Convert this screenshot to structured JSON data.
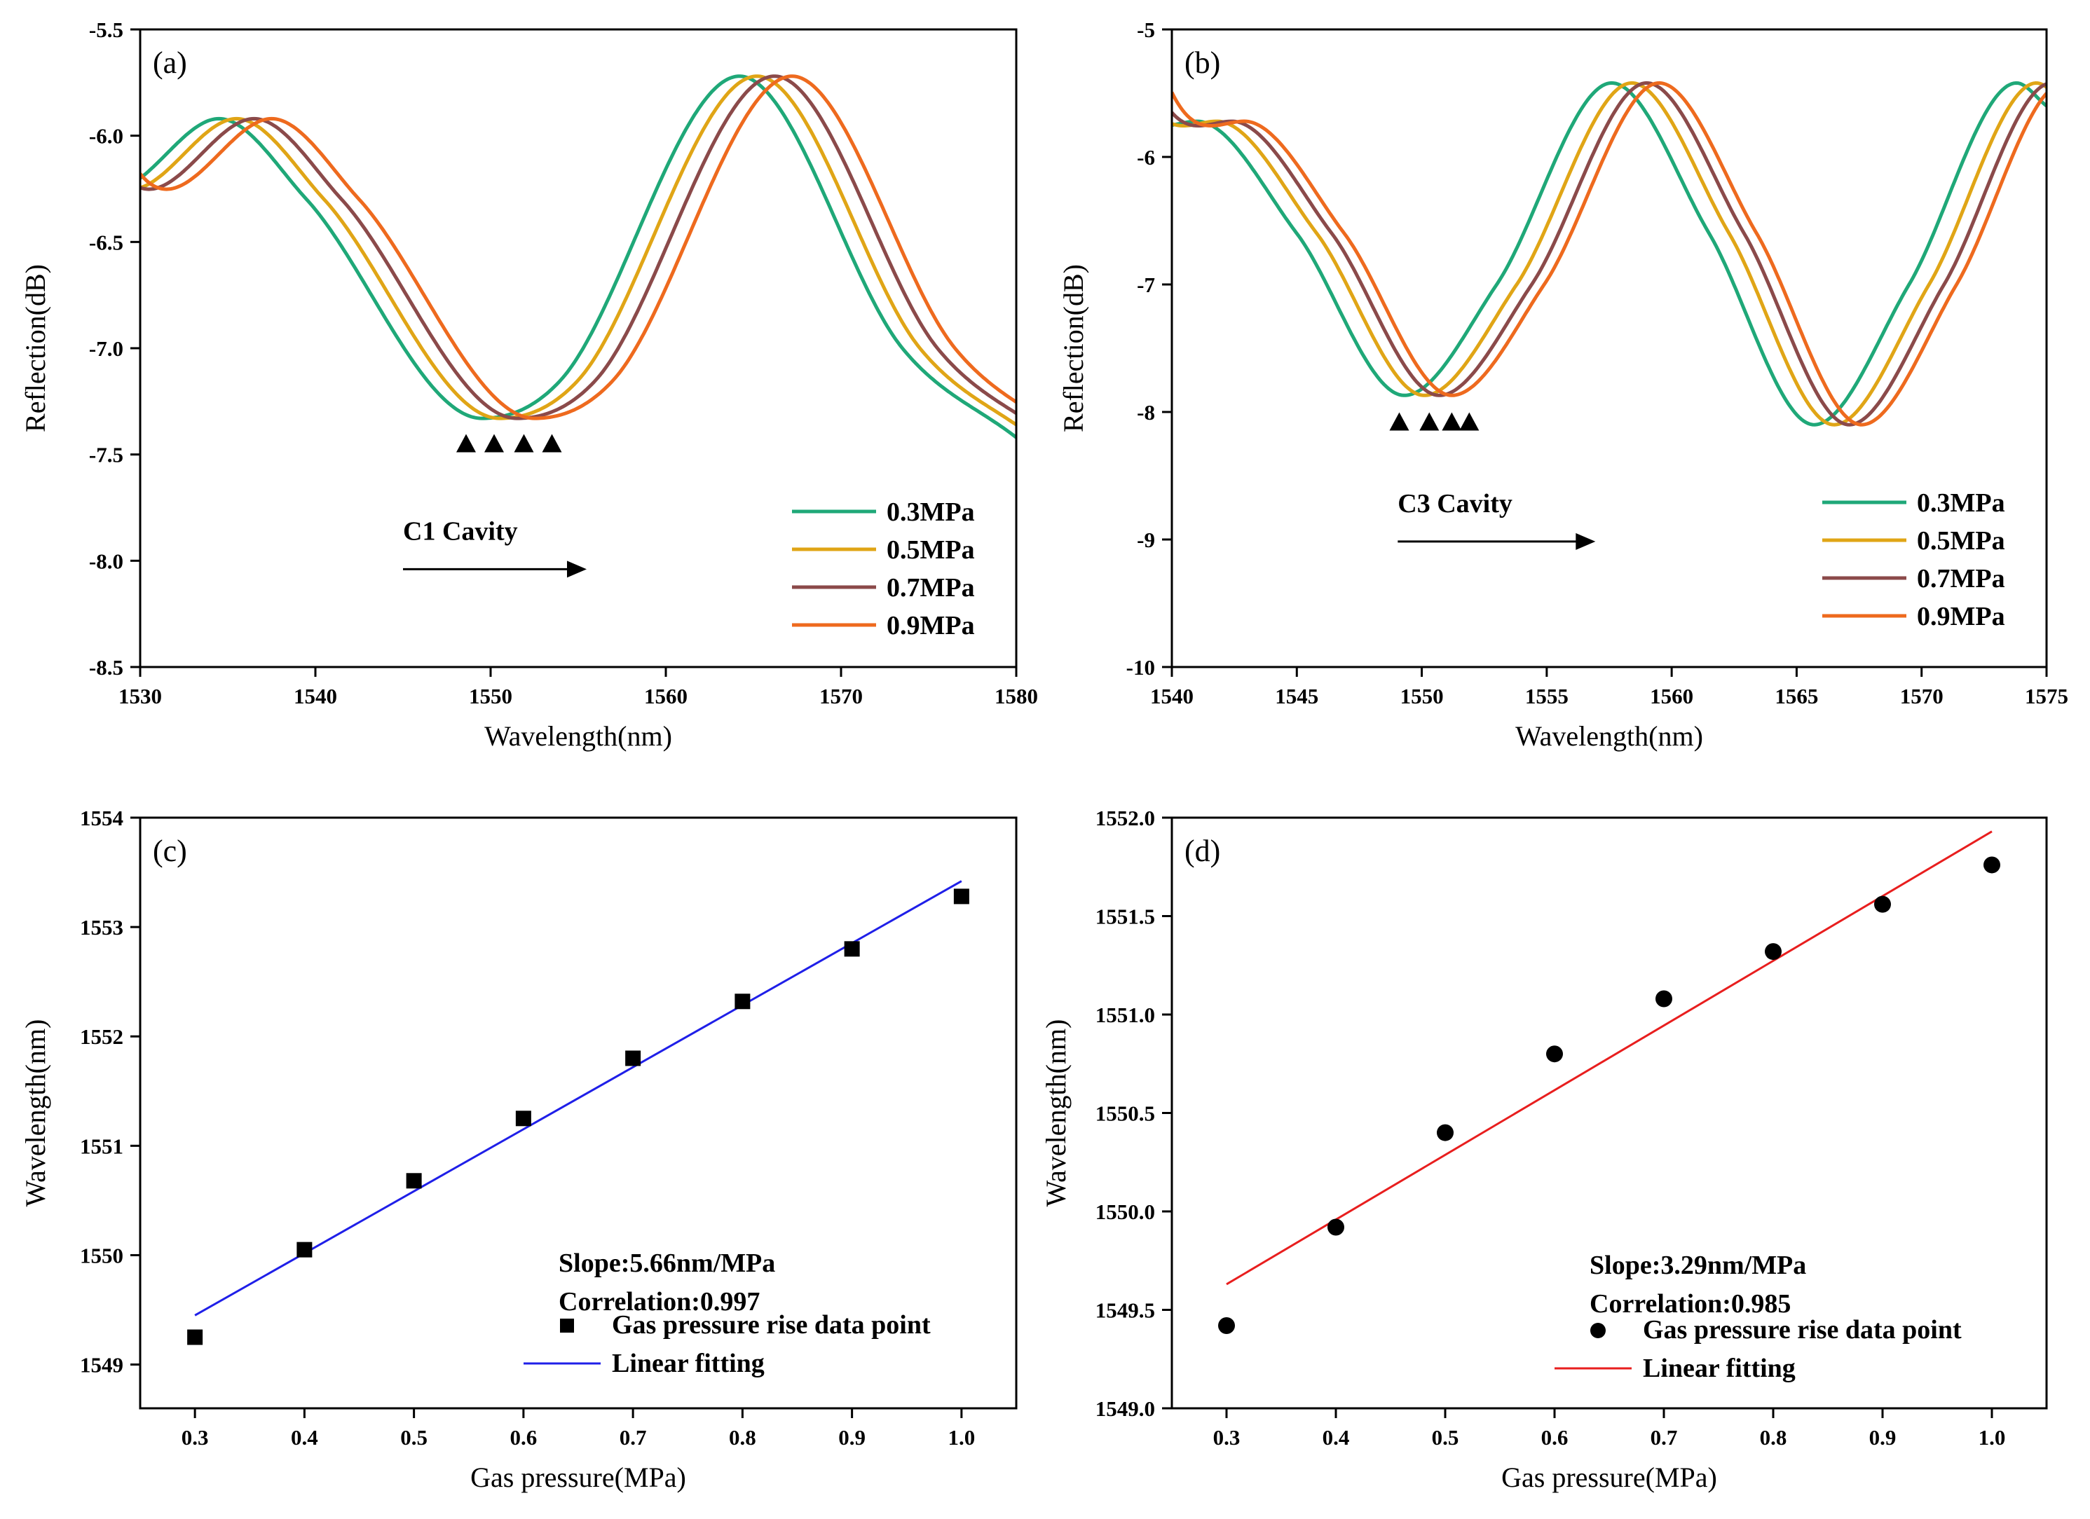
{
  "chart_data": [
    {
      "type": "line",
      "panel_label": "(a)",
      "xlabel": "Wavelength(nm)",
      "ylabel": "Reflection(dB)",
      "xlim": [
        1530,
        1580
      ],
      "ylim": [
        -8.5,
        -5.5
      ],
      "xticks": [
        1530,
        1540,
        1550,
        1560,
        1570,
        1580
      ],
      "yticks": [
        -8.5,
        -8.0,
        -7.5,
        -7.0,
        -6.5,
        -6.0,
        -5.5
      ],
      "xtick_labels": [
        "1530",
        "1540",
        "1550",
        "1560",
        "1570",
        "1580"
      ],
      "ytick_labels": [
        "-8.5",
        "-8.0",
        "-7.5",
        "-7.0",
        "-6.5",
        "-6.0",
        "-5.5"
      ],
      "legend_position": "lower-right",
      "annotation": "C1 Cavity",
      "dip_markers_x": [
        1548.6,
        1550.2,
        1551.9,
        1553.5
      ],
      "series": [
        {
          "name": "0.3MPa",
          "color": "#1fa878",
          "shift": 0.0
        },
        {
          "name": "0.5MPa",
          "color": "#e0a516",
          "shift": 1.0
        },
        {
          "name": "0.7MPa",
          "color": "#8b4a4a",
          "shift": 2.0
        },
        {
          "name": "0.9MPa",
          "color": "#ee6a1e",
          "shift": 3.0
        }
      ],
      "base_curve": {
        "x": [
          1530,
          1534.5,
          1539.5,
          1549.5,
          1554,
          1564.2,
          1573.5,
          1580
        ],
        "y": [
          -6.2,
          -5.92,
          -6.3,
          -7.33,
          -7.15,
          -5.72,
          -7.0,
          -7.42
        ]
      }
    },
    {
      "type": "line",
      "panel_label": "(b)",
      "xlabel": "Wavelength(nm)",
      "ylabel": "Reflection(dB)",
      "xlim": [
        1540,
        1575
      ],
      "ylim": [
        -10,
        -5
      ],
      "xticks": [
        1540,
        1545,
        1550,
        1555,
        1560,
        1565,
        1570,
        1575
      ],
      "yticks": [
        -10,
        -9,
        -8,
        -7,
        -6,
        -5
      ],
      "xtick_labels": [
        "1540",
        "1545",
        "1550",
        "1555",
        "1560",
        "1565",
        "1570",
        "1575"
      ],
      "ytick_labels": [
        "-10",
        "-9",
        "-8",
        "-7",
        "-6",
        "-5"
      ],
      "legend_position": "lower-right",
      "annotation": "C3 Cavity",
      "dip_markers_x": [
        1549.1,
        1550.3,
        1551.2,
        1551.9
      ],
      "series": [
        {
          "name": "0.3MPa",
          "color": "#1fa878",
          "shift": 0.0
        },
        {
          "name": "0.5MPa",
          "color": "#e0a516",
          "shift": 0.8
        },
        {
          "name": "0.7MPa",
          "color": "#8b4a4a",
          "shift": 1.4
        },
        {
          "name": "0.9MPa",
          "color": "#ee6a1e",
          "shift": 1.9
        }
      ],
      "base_curve": {
        "x": [
          1540,
          1541,
          1545,
          1549.3,
          1553,
          1557.6,
          1561.5,
          1565.7,
          1569.5,
          1573.8,
          1575
        ],
        "y": [
          -5.75,
          -5.72,
          -6.6,
          -7.87,
          -7.0,
          -5.42,
          -6.6,
          -8.1,
          -7.0,
          -5.42,
          -5.6
        ]
      }
    },
    {
      "type": "scatter",
      "panel_label": "(c)",
      "xlabel": "Gas pressure(MPa)",
      "ylabel": "Wavelength(nm)",
      "xlim": [
        0.25,
        1.05
      ],
      "ylim": [
        1548.6,
        1554
      ],
      "xticks": [
        0.3,
        0.4,
        0.5,
        0.6,
        0.7,
        0.8,
        0.9,
        1.0
      ],
      "yticks": [
        1549,
        1550,
        1551,
        1552,
        1553,
        1554
      ],
      "xtick_labels": [
        "0.3",
        "0.4",
        "0.5",
        "0.6",
        "0.7",
        "0.8",
        "0.9",
        "1.0"
      ],
      "ytick_labels": [
        "1549",
        "1550",
        "1551",
        "1552",
        "1553",
        "1554"
      ],
      "marker": "square",
      "marker_color": "#000000",
      "fit_color": "#1f1fe8",
      "legend_position": "lower-right",
      "points": {
        "name": "Gas pressure rise data point",
        "x": [
          0.3,
          0.4,
          0.5,
          0.6,
          0.7,
          0.8,
          0.9,
          1.0
        ],
        "y": [
          1549.25,
          1550.05,
          1550.68,
          1551.25,
          1551.8,
          1552.32,
          1552.8,
          1553.28
        ]
      },
      "fit": {
        "name": "Linear fitting",
        "x": [
          0.3,
          1.0
        ],
        "y": [
          1549.45,
          1553.42
        ]
      },
      "annotations": [
        "Slope:5.66nm/MPa",
        "Correlation:0.997"
      ]
    },
    {
      "type": "scatter",
      "panel_label": "(d)",
      "xlabel": "Gas pressure(MPa)",
      "ylabel": "Wavelength(nm)",
      "xlim": [
        0.25,
        1.05
      ],
      "ylim": [
        1549.0,
        1552.0
      ],
      "xticks": [
        0.3,
        0.4,
        0.5,
        0.6,
        0.7,
        0.8,
        0.9,
        1.0
      ],
      "yticks": [
        1549.0,
        1549.5,
        1550.0,
        1550.5,
        1551.0,
        1551.5,
        1552.0
      ],
      "xtick_labels": [
        "0.3",
        "0.4",
        "0.5",
        "0.6",
        "0.7",
        "0.8",
        "0.9",
        "1.0"
      ],
      "ytick_labels": [
        "1549.0",
        "1549.5",
        "1550.0",
        "1550.5",
        "1551.0",
        "1551.5",
        "1552.0"
      ],
      "marker": "circle",
      "marker_color": "#000000",
      "fit_color": "#e81e1e",
      "legend_position": "lower-right",
      "points": {
        "name": "Gas pressure rise data point",
        "x": [
          0.3,
          0.4,
          0.5,
          0.6,
          0.7,
          0.8,
          0.9,
          1.0
        ],
        "y": [
          1549.42,
          1549.92,
          1550.4,
          1550.8,
          1551.08,
          1551.32,
          1551.56,
          1551.76
        ]
      },
      "fit": {
        "name": "Linear fitting",
        "x": [
          0.3,
          1.0
        ],
        "y": [
          1549.63,
          1551.93
        ]
      },
      "annotations": [
        "Slope:3.29nm/MPa",
        "Correlation:0.985"
      ]
    }
  ]
}
